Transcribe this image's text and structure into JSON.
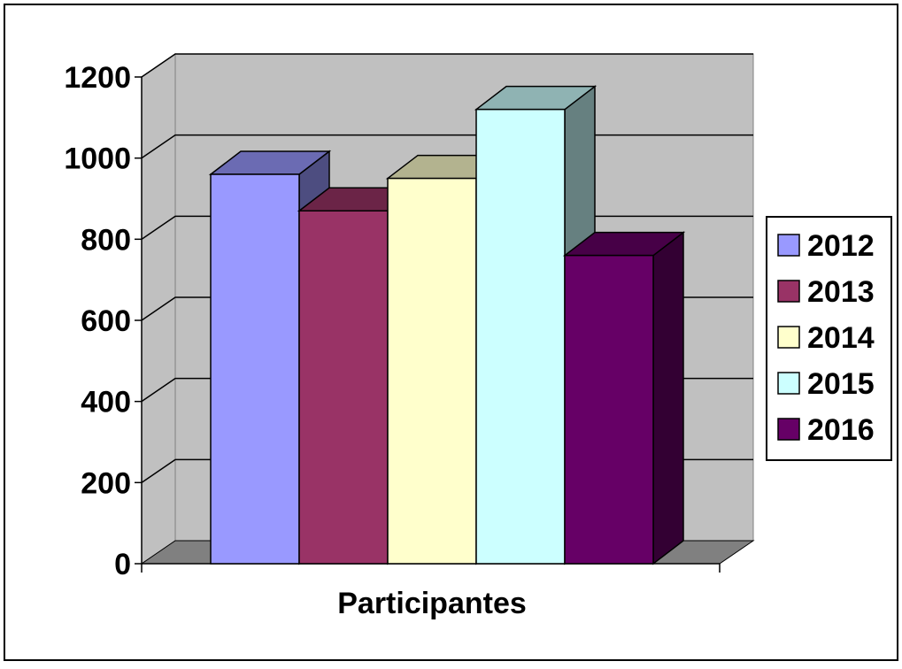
{
  "chart_data": {
    "type": "bar",
    "style": "3d-clustered-column",
    "categories": [
      "Participantes"
    ],
    "series": [
      {
        "name": "2012",
        "values": [
          960
        ],
        "color": "#9999FF"
      },
      {
        "name": "2013",
        "values": [
          870
        ],
        "color": "#993366"
      },
      {
        "name": "2014",
        "values": [
          950
        ],
        "color": "#FFFFCC"
      },
      {
        "name": "2015",
        "values": [
          1120
        ],
        "color": "#CCFFFF"
      },
      {
        "name": "2016",
        "values": [
          760
        ],
        "color": "#660066"
      }
    ],
    "title": "",
    "xlabel": "",
    "ylabel": "",
    "ylim": [
      0,
      1200
    ],
    "yticks": [
      "0",
      "200",
      "400",
      "600",
      "800",
      "1000",
      "1200"
    ],
    "grid": true,
    "legend": "right",
    "colors": {
      "wall": "#C0C0C0",
      "floor": "#808080",
      "gridline": "#000000",
      "background": "#FFFFFF"
    }
  }
}
